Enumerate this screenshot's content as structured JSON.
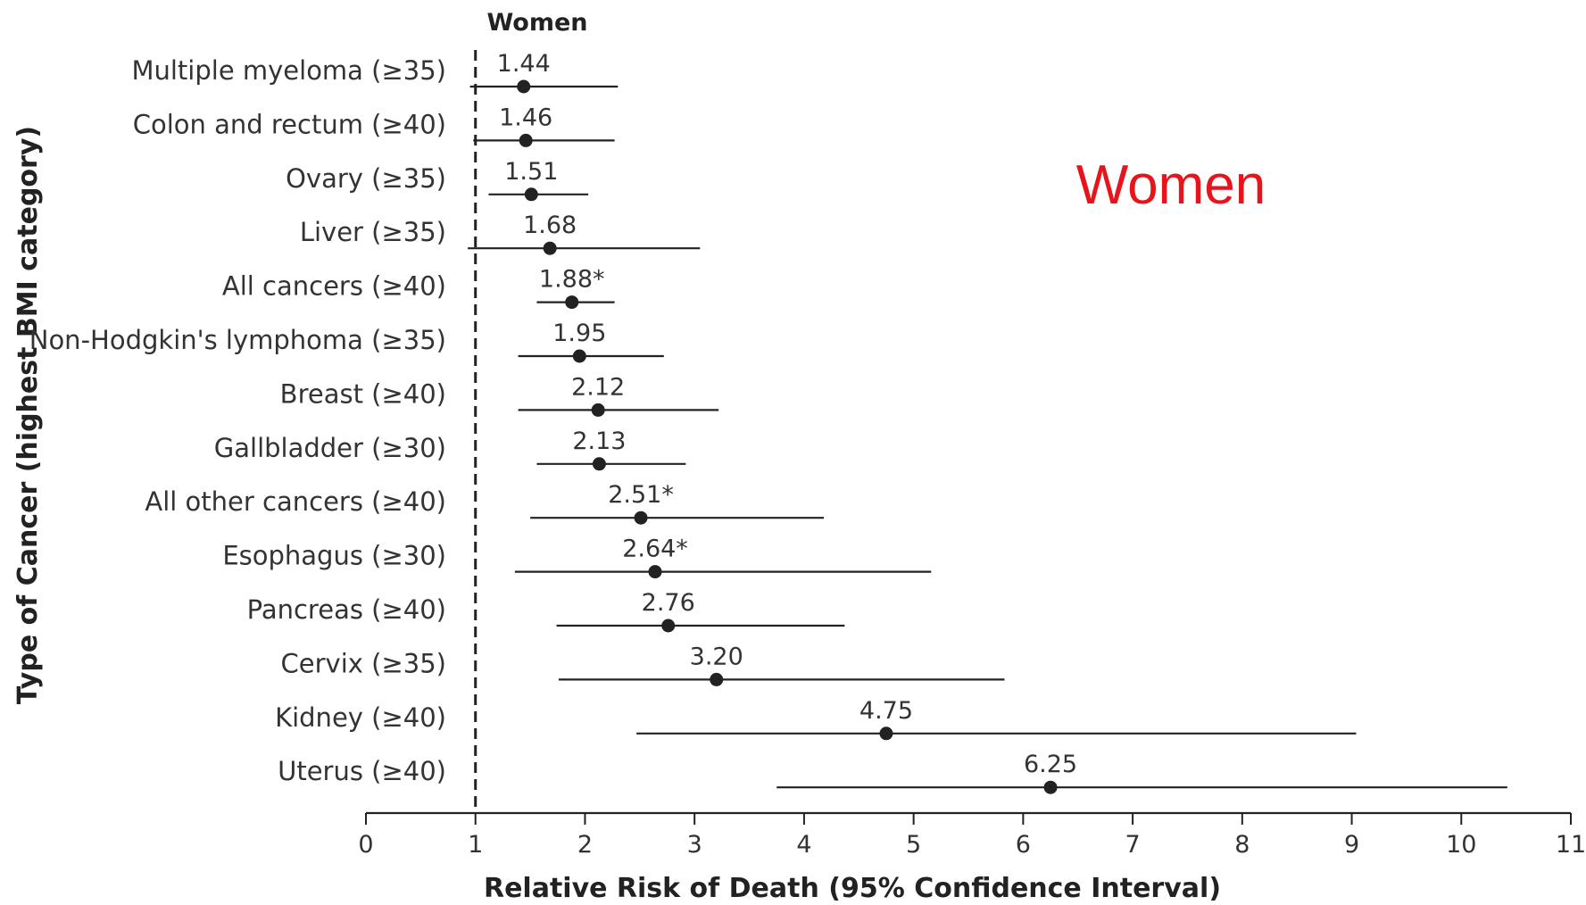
{
  "chart_data": {
    "type": "forest",
    "title": "Women",
    "annotation": "Women",
    "xlabel": "Relative Risk of Death (95% Confidence Interval)",
    "ylabel": "Type of Cancer (highest BMI category)",
    "xlim": [
      0,
      11
    ],
    "xticks": [
      "0",
      "1",
      "2",
      "3",
      "4",
      "5",
      "6",
      "7",
      "8",
      "9",
      "10",
      "11"
    ],
    "reference_line": 1,
    "rows": [
      {
        "label": "Multiple myeloma (≥35)",
        "value": 1.44,
        "value_label": "1.44",
        "ci": [
          0.95,
          2.3
        ]
      },
      {
        "label": "Colon and rectum (≥40)",
        "value": 1.46,
        "value_label": "1.46",
        "ci": [
          0.98,
          2.27
        ]
      },
      {
        "label": "Ovary (≥35)",
        "value": 1.51,
        "value_label": "1.51",
        "ci": [
          1.12,
          2.03
        ]
      },
      {
        "label": "Liver (≥35)",
        "value": 1.68,
        "value_label": "1.68",
        "ci": [
          0.93,
          3.05
        ]
      },
      {
        "label": "All cancers (≥40)",
        "value": 1.88,
        "value_label": "1.88*",
        "ci": [
          1.56,
          2.27
        ]
      },
      {
        "label": "Non-Hodgkin's lymphoma (≥35)",
        "value": 1.95,
        "value_label": "1.95",
        "ci": [
          1.39,
          2.72
        ]
      },
      {
        "label": "Breast (≥40)",
        "value": 2.12,
        "value_label": "2.12",
        "ci": [
          1.39,
          3.22
        ]
      },
      {
        "label": "Gallbladder (≥30)",
        "value": 2.13,
        "value_label": "2.13",
        "ci": [
          1.56,
          2.92
        ]
      },
      {
        "label": "All other cancers (≥40)",
        "value": 2.51,
        "value_label": "2.51*",
        "ci": [
          1.5,
          4.18
        ]
      },
      {
        "label": "Esophagus (≥30)",
        "value": 2.64,
        "value_label": "2.64*",
        "ci": [
          1.36,
          5.16
        ]
      },
      {
        "label": "Pancreas (≥40)",
        "value": 2.76,
        "value_label": "2.76",
        "ci": [
          1.74,
          4.37
        ]
      },
      {
        "label": "Cervix (≥35)",
        "value": 3.2,
        "value_label": "3.20",
        "ci": [
          1.76,
          5.83
        ]
      },
      {
        "label": "Kidney (≥40)",
        "value": 4.75,
        "value_label": "4.75",
        "ci": [
          2.47,
          9.04
        ]
      },
      {
        "label": "Uterus (≥40)",
        "value": 6.25,
        "value_label": "6.25",
        "ci": [
          3.75,
          10.42
        ]
      }
    ],
    "colors": {
      "ink": "#222222",
      "annotation": "#e8141b"
    }
  }
}
